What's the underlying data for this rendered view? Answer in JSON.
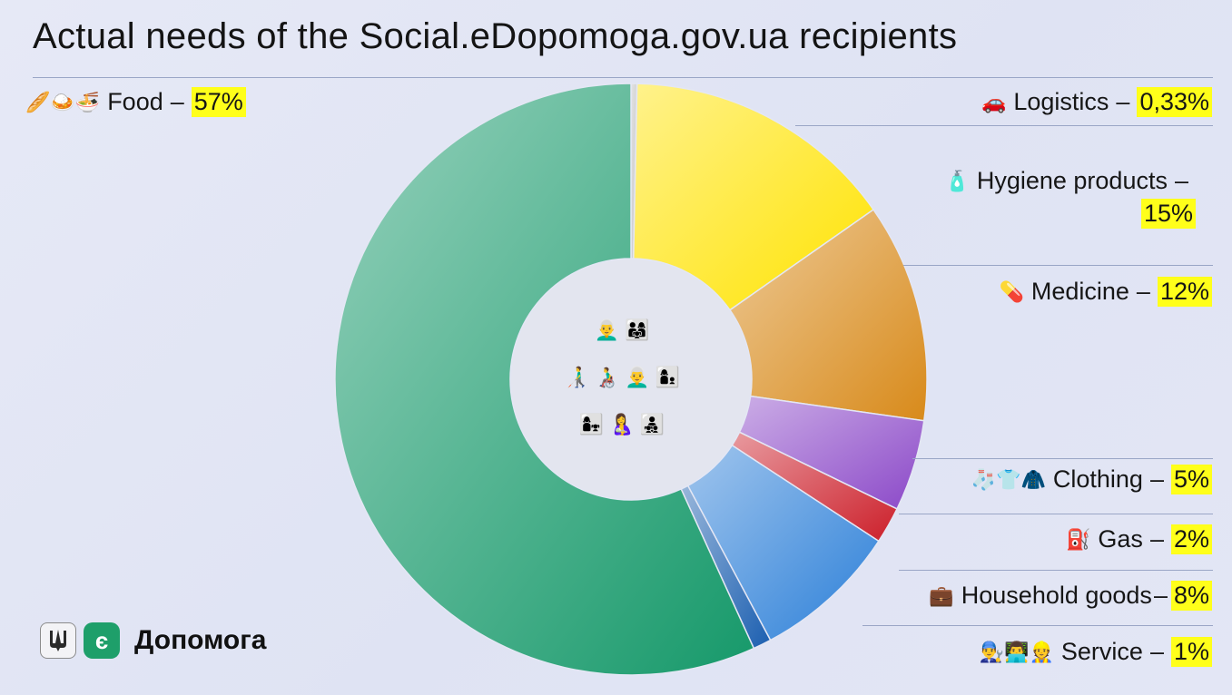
{
  "title": "Actual needs of the Social.eDopomoga.gov.ua recipients",
  "brand": {
    "name": "Допомога",
    "logo_letter": "є"
  },
  "center_icons": [
    "👨‍🦳 👨‍👩‍👧",
    "👨‍🦯 👨‍🦽 👨‍🦳 👩‍👦",
    "👩‍👧 🤱 👨‍👧‍👦"
  ],
  "chart_data": {
    "type": "pie",
    "donut": true,
    "title": "Actual needs of the Social.eDopomoga.gov.ua recipients",
    "slices": [
      {
        "name": "Logistics",
        "label": "Logistics",
        "value": 0.33,
        "value_label": "0,33%",
        "color": "#c2c2c2",
        "icons": "🚗"
      },
      {
        "name": "Hygiene products",
        "label": "Hygiene products",
        "value": 15,
        "value_label": "15%",
        "color": "#ffe300",
        "icons": "🧴"
      },
      {
        "name": "Medicine",
        "label": "Medicine",
        "value": 12,
        "value_label": "12%",
        "color": "#d88a1a",
        "icons": "💊"
      },
      {
        "name": "Clothing",
        "label": "Clothing",
        "value": 5,
        "value_label": "5%",
        "color": "#8b48c8",
        "icons": "🧦👕🧥"
      },
      {
        "name": "Gas",
        "label": "Gas",
        "value": 2,
        "value_label": "2%",
        "color": "#cc1f2a",
        "icons": "⛽"
      },
      {
        "name": "Household goods",
        "label": "Household goods",
        "value": 8,
        "value_label": "8%",
        "color": "#2b7fd8",
        "icons": "💼"
      },
      {
        "name": "Service",
        "label": "Service",
        "value": 1,
        "value_label": "1%",
        "color": "#1c5fb0",
        "icons": "👨‍🔧👨‍💻👷"
      },
      {
        "name": "Food",
        "label": "Food",
        "value": 57,
        "value_label": "57%",
        "color": "#16996a",
        "icons": "🥖🍛🍜"
      }
    ]
  }
}
